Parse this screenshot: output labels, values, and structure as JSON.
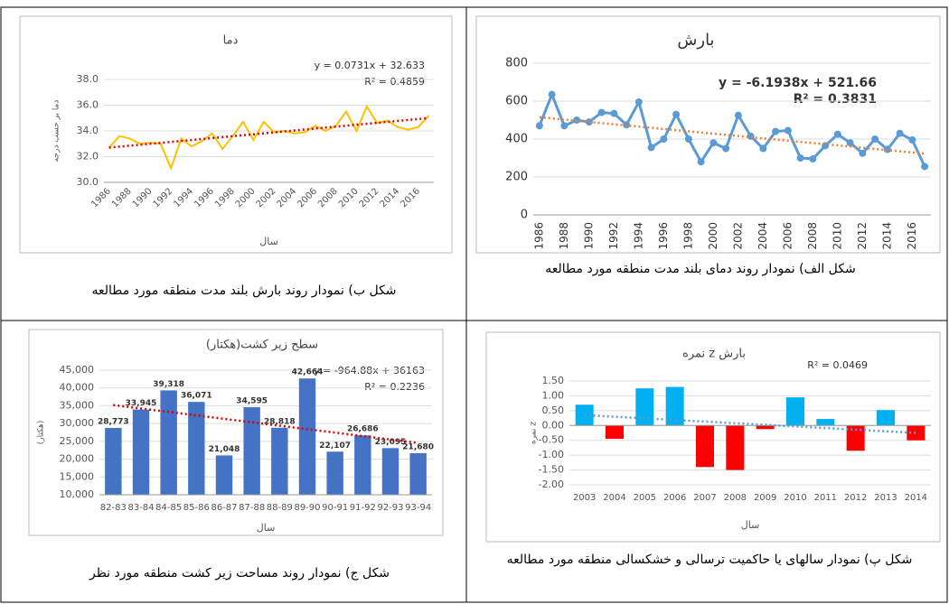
{
  "chart_data": [
    {
      "type": "line",
      "title": "دما",
      "ylabel": "دما بر حسب درجه",
      "xlabel": "سال",
      "annotations": [
        "y = 0.0731x + 32.633",
        "R² = 0.4859"
      ],
      "caption": "شکل ب) نمودار روند بارش بلند مدت منطقه مورد مطالعه",
      "categories": [
        "1986",
        null,
        "1988",
        null,
        "1990",
        null,
        "1992",
        null,
        "1994",
        null,
        "1996",
        null,
        "1998",
        null,
        "2000",
        null,
        "2002",
        null,
        "2004",
        null,
        "2006",
        null,
        "2008",
        null,
        "2010",
        null,
        "2012",
        null,
        "2014",
        null,
        "2016",
        null
      ],
      "values": [
        32.7,
        33.6,
        33.4,
        33.0,
        33.1,
        33.0,
        31.1,
        33.4,
        32.8,
        33.2,
        33.8,
        32.6,
        33.6,
        34.7,
        33.3,
        34.7,
        33.9,
        34.0,
        33.8,
        33.9,
        34.4,
        34.0,
        34.4,
        35.5,
        34.0,
        35.9,
        34.6,
        34.8,
        34.3,
        34.1,
        34.3,
        35.2
      ],
      "color": "#ffc000",
      "marker": false,
      "trendline": {
        "values": [
          32.7,
          35.0
        ],
        "color": "#e00000"
      },
      "ylim": [
        30,
        38
      ],
      "yticks": [
        {
          "value": 30,
          "label": "30.0"
        },
        {
          "value": 32,
          "label": "32.0"
        },
        {
          "value": 34,
          "label": "34.0"
        },
        {
          "value": 36,
          "label": "36.0"
        },
        {
          "value": 38,
          "label": "38.0"
        }
      ],
      "grid": true
    },
    {
      "type": "line",
      "title": "بارش",
      "xlabel": null,
      "annotations": [
        "y = -6.1938x + 521.66",
        "R² = 0.3831"
      ],
      "caption": "شکل الف) نمودار روند دمای بلند مدت منطقه مورد مطالعه",
      "categories": [
        "1986",
        null,
        "1988",
        null,
        "1990",
        null,
        "1992",
        null,
        "1994",
        null,
        "1996",
        null,
        "1998",
        null,
        "2000",
        null,
        "2002",
        null,
        "2004",
        null,
        "2006",
        null,
        "2008",
        null,
        "2010",
        null,
        "2012",
        null,
        "2014",
        null,
        "2016",
        null
      ],
      "values": [
        470,
        635,
        470,
        500,
        490,
        540,
        535,
        475,
        595,
        355,
        400,
        530,
        400,
        280,
        380,
        350,
        525,
        415,
        350,
        440,
        445,
        300,
        295,
        365,
        425,
        380,
        325,
        400,
        345,
        430,
        395,
        255
      ],
      "color": "#5b9bd5",
      "marker": true,
      "trendline": {
        "values": [
          515,
          323
        ],
        "color": "#ed7d31"
      },
      "ylim": [
        0,
        800
      ],
      "yticks": [
        0,
        200,
        400,
        600,
        800
      ],
      "grid": true
    },
    {
      "type": "bar",
      "title": "سطح زیر کشت(هکتار)",
      "ylabel": "(هکتار)",
      "xlabel": "سال",
      "annotations": [
        "y = -964.88x + 36163",
        "R² = 0.2236"
      ],
      "caption": "شکل ج) نمودار روند مساحت زیر کشت منطقه مورد نظر",
      "categories": [
        "82-83",
        "83-84",
        "84-85",
        "85-86",
        "86-87",
        "87-88",
        "88-89",
        "89-90",
        "90-91",
        "91-92",
        "92-93",
        "93-94"
      ],
      "values": [
        28773,
        33945,
        39318,
        36071,
        21048,
        34595,
        28818,
        42664,
        22107,
        26686,
        23095,
        21680
      ],
      "value_labels": [
        "28,773",
        "33,945",
        "39,318",
        "36,071",
        "21,048",
        "34,595",
        "28,818",
        "42,664",
        "22,107",
        "26,686",
        "23,095",
        "21,680"
      ],
      "color": "#4472c4",
      "trendline": {
        "values": [
          35200,
          24550
        ],
        "color": "#e00000"
      },
      "ylim": [
        10000,
        45000
      ],
      "yticks": [
        {
          "value": 10000,
          "label": "10,000"
        },
        {
          "value": 15000,
          "label": "15,000"
        },
        {
          "value": 20000,
          "label": "20,000"
        },
        {
          "value": 25000,
          "label": "25,000"
        },
        {
          "value": 30000,
          "label": "30,000"
        },
        {
          "value": 35000,
          "label": "35,000"
        },
        {
          "value": 40000,
          "label": "40,000"
        },
        {
          "value": 45000,
          "label": "45,000"
        }
      ],
      "grid": true
    },
    {
      "type": "bar",
      "title": "نمره z بارش",
      "ylabel": "نمره z",
      "xlabel": "سال",
      "annotations": [
        "R² = 0.0469"
      ],
      "caption": "شکل پ) نمودار سالهای یا حاکمیت ترسالی و خشکسالی منطقه مورد مطالعه",
      "categories": [
        "2003",
        "2004",
        "2005",
        "2006",
        "2007",
        "2008",
        "2009",
        "2010",
        "2011",
        "2012",
        "2013",
        "2014"
      ],
      "values": [
        0.7,
        -0.45,
        1.25,
        1.3,
        -1.4,
        -1.5,
        -0.12,
        0.95,
        0.22,
        -0.85,
        0.52,
        -0.5
      ],
      "colors": [
        "#00b0f0",
        "#ff0000",
        "#00b0f0",
        "#00b0f0",
        "#ff0000",
        "#ff0000",
        "#ff0000",
        "#00b0f0",
        "#00b0f0",
        "#ff0000",
        "#00b0f0",
        "#ff0000"
      ],
      "trendline": {
        "values": [
          0.35,
          -0.25
        ],
        "color": "#5b9bd5"
      },
      "ylim": [
        -2,
        1.5
      ],
      "yticks": [
        {
          "value": -2,
          "label": "-2.00"
        },
        {
          "value": -1.5,
          "label": "-1.50"
        },
        {
          "value": -1,
          "label": "-1.00"
        },
        {
          "value": -0.5,
          "label": "-0.50"
        },
        {
          "value": 0,
          "label": "0.00"
        },
        {
          "value": 0.5,
          "label": "0.50"
        },
        {
          "value": 1,
          "label": "1.00"
        },
        {
          "value": 1.5,
          "label": "1.50"
        }
      ],
      "grid": true
    }
  ]
}
